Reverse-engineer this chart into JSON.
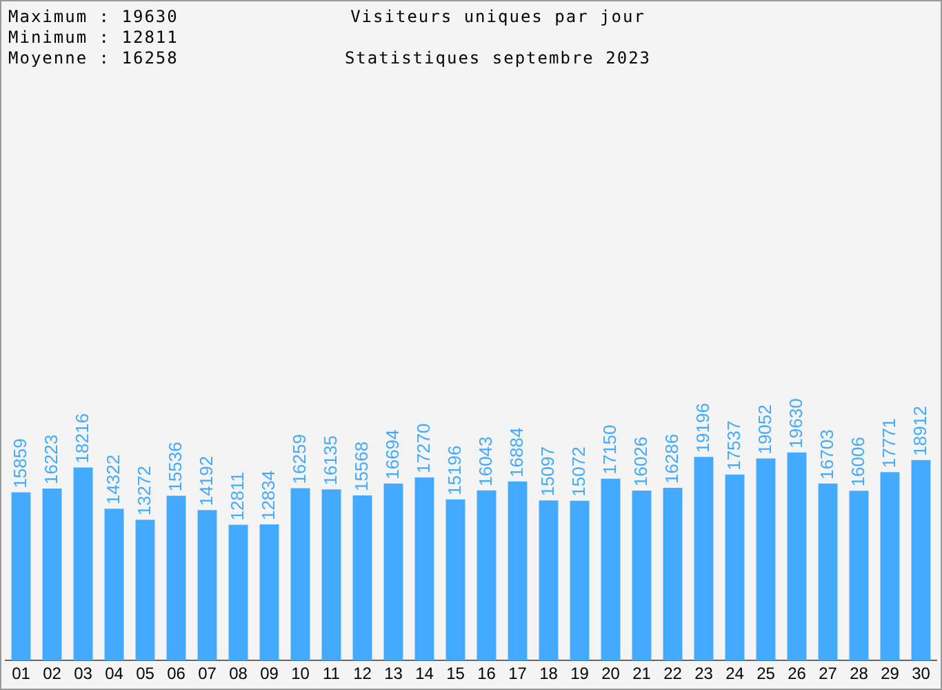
{
  "chart_data": {
    "type": "bar",
    "title": "Visiteurs uniques par jour",
    "subtitle": "Statistiques septembre 2023",
    "annotations": [
      "Maximum : 19630",
      "Minimum : 12811",
      "Moyenne : 16258"
    ],
    "categories": [
      "01",
      "02",
      "03",
      "04",
      "05",
      "06",
      "07",
      "08",
      "09",
      "10",
      "11",
      "12",
      "13",
      "14",
      "15",
      "16",
      "17",
      "18",
      "19",
      "20",
      "21",
      "22",
      "23",
      "24",
      "25",
      "26",
      "27",
      "28",
      "29",
      "30"
    ],
    "values": [
      15859,
      16223,
      18216,
      14322,
      13272,
      15536,
      14192,
      12811,
      12834,
      16259,
      16135,
      15568,
      16694,
      17270,
      15196,
      16043,
      16884,
      15097,
      15072,
      17150,
      16026,
      16286,
      19196,
      17537,
      19052,
      19630,
      16703,
      16006,
      17771,
      18912
    ],
    "color": "#44aaff",
    "data_labels": true,
    "grid": false,
    "legend": false
  }
}
